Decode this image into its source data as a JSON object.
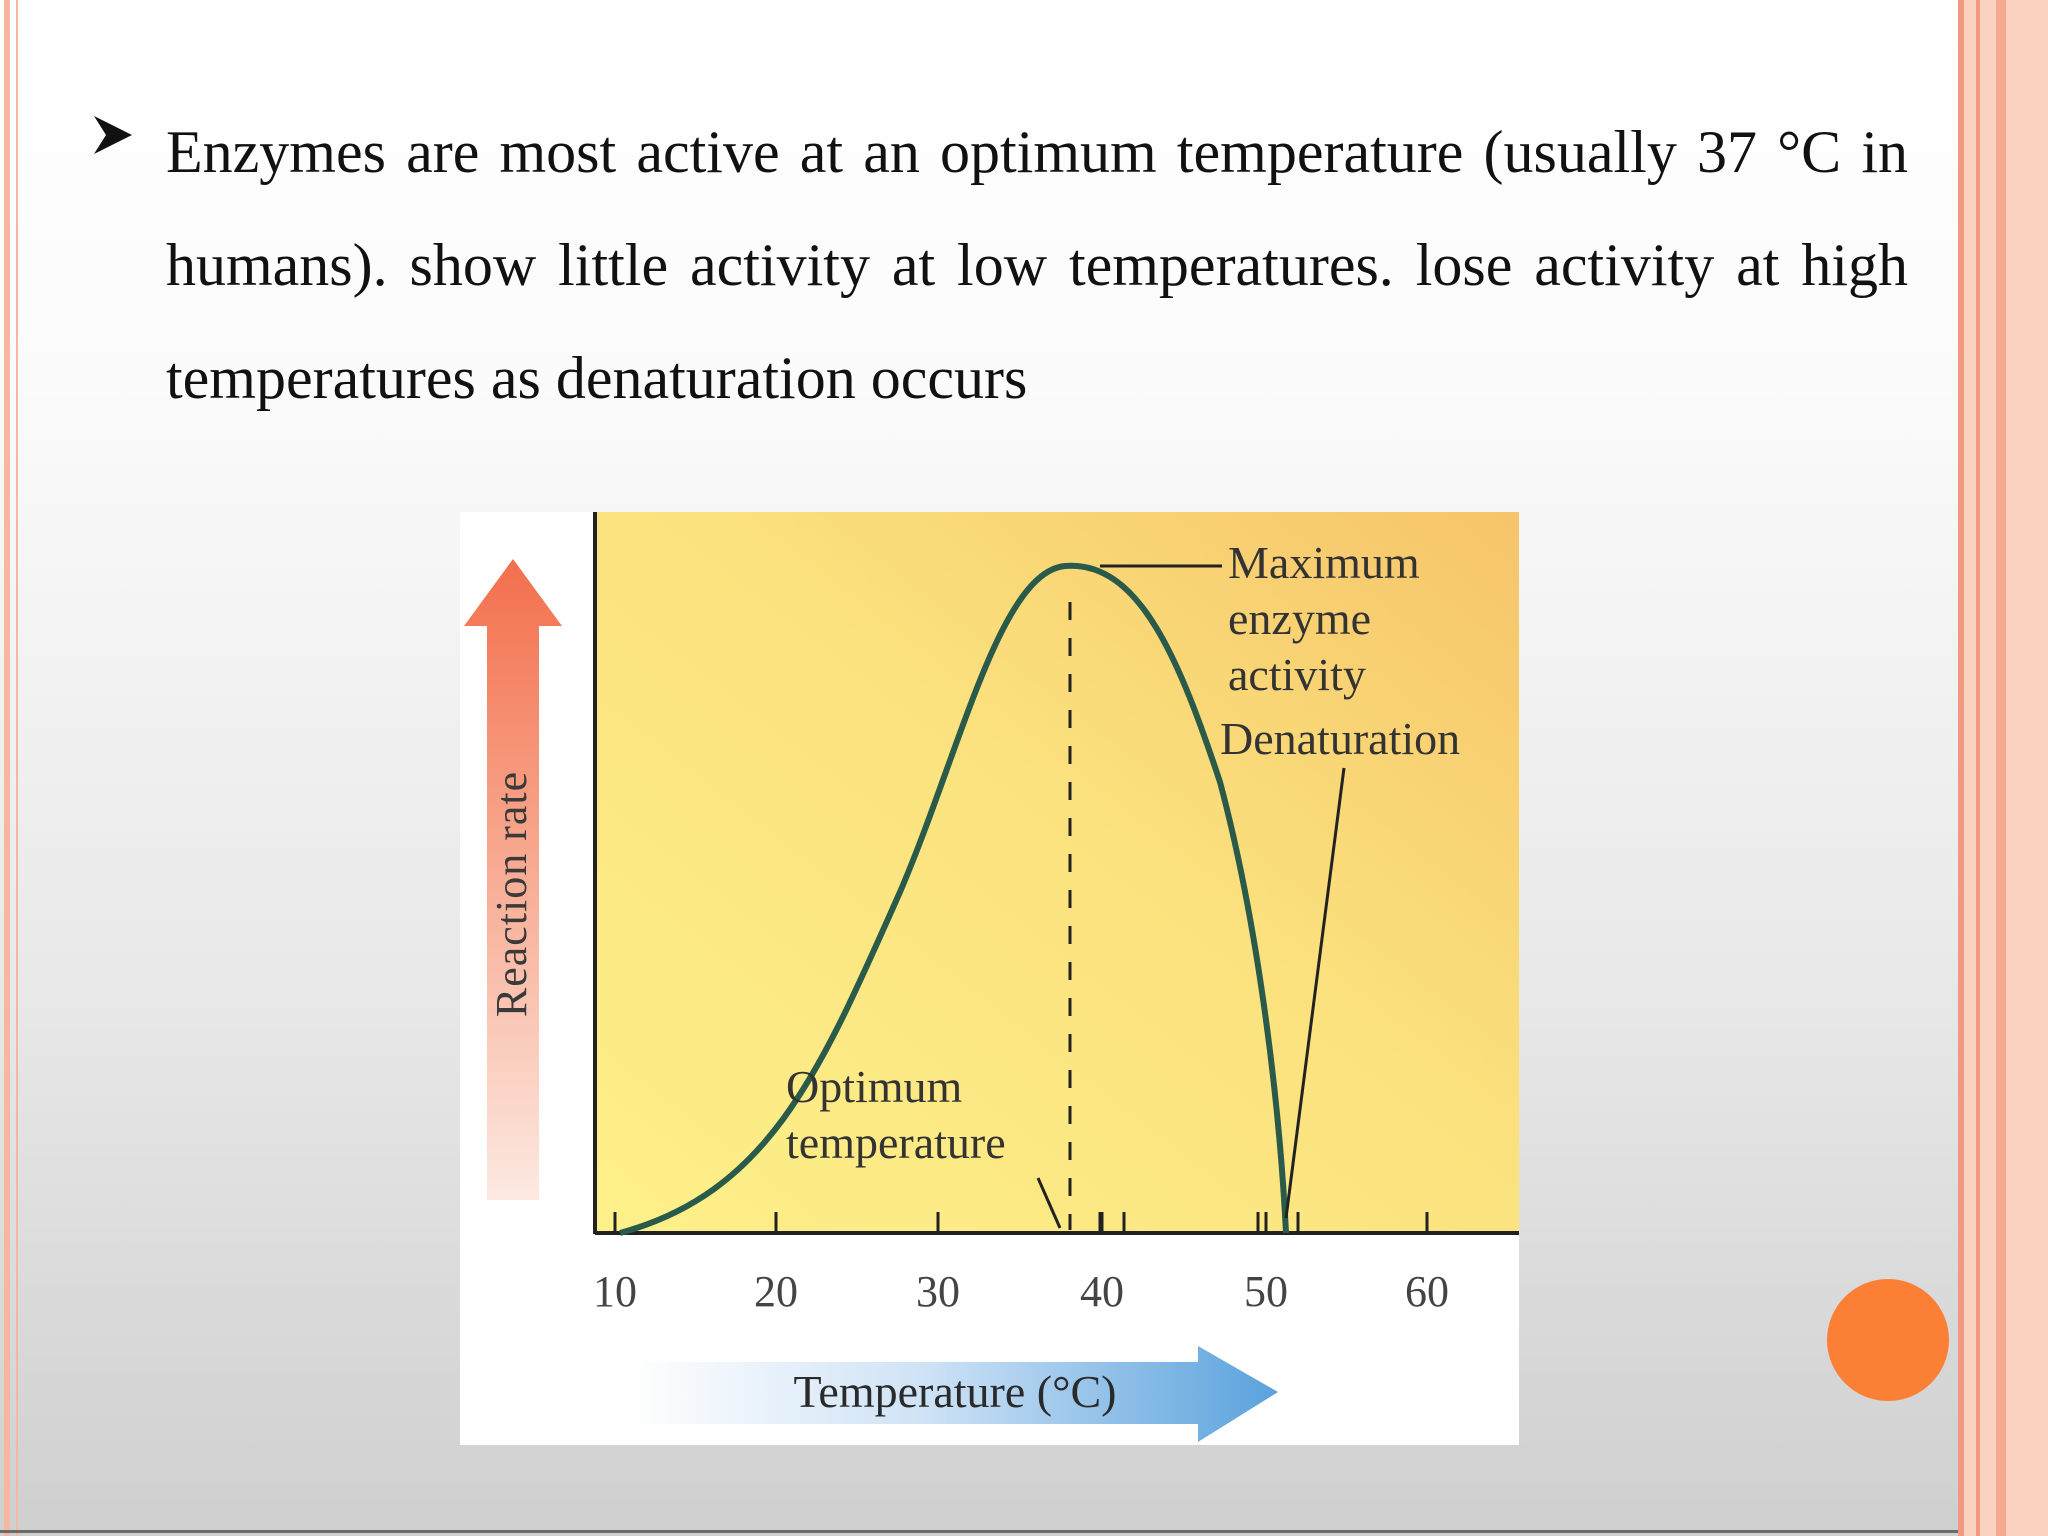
{
  "slide": {
    "bullet_text": "Enzymes are most active at an  optimum temperature  (usually 37 °C in  humans). show little activity at low temperatures. lose activity at high  temperatures as  denaturation occurs"
  },
  "diagram": {
    "y_axis_label": "Reaction rate",
    "x_axis_label": "Temperature (°C)",
    "x_ticks": [
      "10",
      "20",
      "30",
      "40",
      "50",
      "60"
    ],
    "annotation_max_lines": [
      "Maximum",
      "enzyme",
      "activity"
    ],
    "annotation_denaturation": "Denaturation",
    "annotation_optimum_lines": [
      "Optimum",
      "temperature"
    ]
  },
  "colors": {
    "plot_bg_start": "#fdf08a",
    "plot_bg_end": "#f8c86c",
    "curve": "#2a5a4a",
    "up_arrow": "#f36f4c",
    "right_arrow": "#5aa2dd",
    "accent_dot": "#fb8036"
  }
}
